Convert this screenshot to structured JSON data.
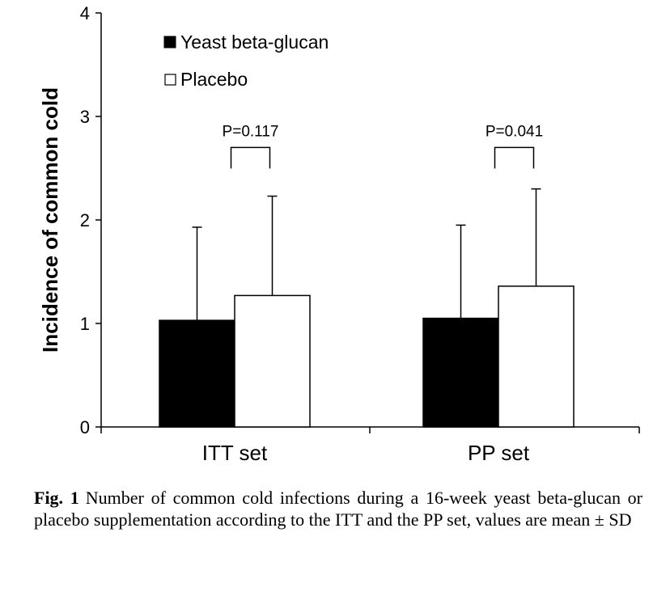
{
  "chart_data": {
    "type": "bar",
    "categories": [
      "ITT set",
      "PP set"
    ],
    "series": [
      {
        "name": "Yeast beta-glucan",
        "values": [
          1.03,
          1.05
        ],
        "sd": [
          0.9,
          0.9
        ],
        "color": "#000000"
      },
      {
        "name": "Placebo",
        "values": [
          1.27,
          1.36
        ],
        "sd": [
          0.96,
          0.94
        ],
        "color": "#ffffff"
      }
    ],
    "ylabel": "Incidence of common cold",
    "xlabel": "",
    "ylim": [
      0,
      4
    ],
    "yticks": [
      "0",
      "1",
      "2",
      "3",
      "4"
    ],
    "legend_position": "top-left",
    "annotations": [
      {
        "text": "P=0.117",
        "category": "ITT set",
        "y_bracket": 2.7
      },
      {
        "text": "P=0.041",
        "category": "PP set",
        "y_bracket": 2.7
      }
    ]
  },
  "caption": {
    "label": "Fig. 1",
    "text": "Number of common cold infections during a 16-week yeast beta-glucan or placebo supplementation according to the ITT and the PP set, values are mean ± SD"
  }
}
